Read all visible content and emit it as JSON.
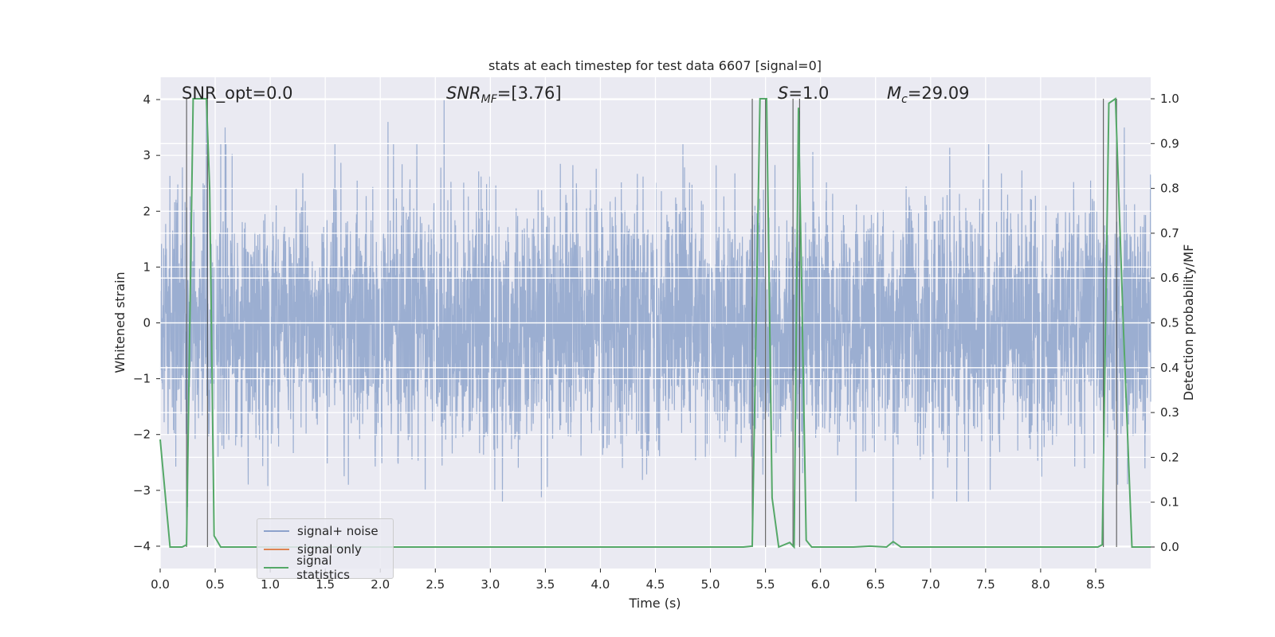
{
  "chart_data": {
    "type": "line",
    "title": "stats at each timestep for test data 6607 [signal=0]",
    "xlabel": "Time (s)",
    "ylabel": "Whitened strain",
    "y2label": "Detection probability/MF",
    "xlim": [
      0,
      9.0
    ],
    "ylim": [
      -4.4,
      4.4
    ],
    "y2lim": [
      -0.048,
      1.048
    ],
    "x_ticks": [
      0.0,
      0.5,
      1.0,
      1.5,
      2.0,
      2.5,
      3.0,
      3.5,
      4.0,
      4.5,
      5.0,
      5.5,
      6.0,
      6.5,
      7.0,
      7.5,
      8.0,
      8.5
    ],
    "x_tick_labels": [
      "0.0",
      "0.5",
      "1.0",
      "1.5",
      "2.0",
      "2.5",
      "3.0",
      "3.5",
      "4.0",
      "4.5",
      "5.0",
      "5.5",
      "6.0",
      "6.5",
      "7.0",
      "7.5",
      "8.0",
      "8.5"
    ],
    "y_ticks": [
      -4,
      -3,
      -2,
      -1,
      0,
      1,
      2,
      3,
      4
    ],
    "y_tick_labels": [
      "−4",
      "−3",
      "−2",
      "−1",
      "0",
      "1",
      "2",
      "3",
      "4"
    ],
    "y2_ticks": [
      0.0,
      0.1,
      0.2,
      0.3,
      0.4,
      0.5,
      0.6,
      0.7,
      0.8,
      0.9,
      1.0
    ],
    "y2_tick_labels": [
      "0.0",
      "0.1",
      "0.2",
      "0.3",
      "0.4",
      "0.5",
      "0.6",
      "0.7",
      "0.8",
      "0.9",
      "1.0"
    ],
    "grid": true,
    "legend_position": "lower-left",
    "annotations": {
      "snr_opt": "SNR_opt=0.0",
      "snr_mf": "[3.76]",
      "s_value": "=1.0",
      "mc_value": "=29.09"
    },
    "noise_series": {
      "name": "signal+ noise",
      "color": "#4c72b0",
      "sample_step": 0.002,
      "typical_amplitude": 1.1,
      "peak_samples": [
        {
          "x": 0.42,
          "y": 4.0
        },
        {
          "x": 0.59,
          "y": 3.5
        },
        {
          "x": 2.07,
          "y": 3.6
        },
        {
          "x": 2.58,
          "y": 4.0
        },
        {
          "x": 2.12,
          "y": 3.2
        },
        {
          "x": 4.75,
          "y": 3.2
        },
        {
          "x": 5.81,
          "y": 3.8
        },
        {
          "x": 8.76,
          "y": 3.5
        },
        {
          "x": 6.66,
          "y": -4.0
        },
        {
          "x": 0.25,
          "y": -3.3
        },
        {
          "x": 1.71,
          "y": -2.9
        },
        {
          "x": 3.04,
          "y": -3.0
        },
        {
          "x": 4.2,
          "y": -2.6
        },
        {
          "x": 5.37,
          "y": -2.4
        },
        {
          "x": 8.7,
          "y": -2.9
        }
      ]
    },
    "series": [
      {
        "name": "signal only",
        "color": "#dd8452",
        "x": [],
        "y": []
      },
      {
        "name": "signal statistics",
        "color": "#55a868",
        "x": [
          0.0,
          0.09,
          0.2,
          0.24,
          0.3,
          0.42,
          0.45,
          0.49,
          0.55,
          0.6,
          5.3,
          5.38,
          5.45,
          5.51,
          5.56,
          5.62,
          5.72,
          5.76,
          5.8,
          5.87,
          5.92,
          6.3,
          6.45,
          6.6,
          6.66,
          6.73,
          6.8,
          8.52,
          8.56,
          8.62,
          8.68,
          8.75,
          8.83,
          9.0
        ],
        "y": [
          0.24,
          0.0,
          0.0,
          0.005,
          1.0,
          1.0,
          0.8,
          0.025,
          0.0,
          0.0,
          0.0,
          0.002,
          1.0,
          1.0,
          0.11,
          0.0,
          0.01,
          0.0,
          0.98,
          0.015,
          0.0,
          0.0,
          0.002,
          0.0,
          0.012,
          0.0,
          0.0,
          0.0,
          0.005,
          0.99,
          1.0,
          0.5,
          0.0,
          0.0
        ]
      }
    ],
    "vertical_markers": [
      0.24,
      0.43,
      5.38,
      5.5,
      5.75,
      5.81,
      8.57,
      8.69
    ],
    "legend": [
      {
        "label": "signal+ noise",
        "color": "#8da2cc"
      },
      {
        "label": "signal only",
        "color": "#dd8452"
      },
      {
        "label": "signal statistics",
        "color": "#55a868"
      }
    ]
  }
}
